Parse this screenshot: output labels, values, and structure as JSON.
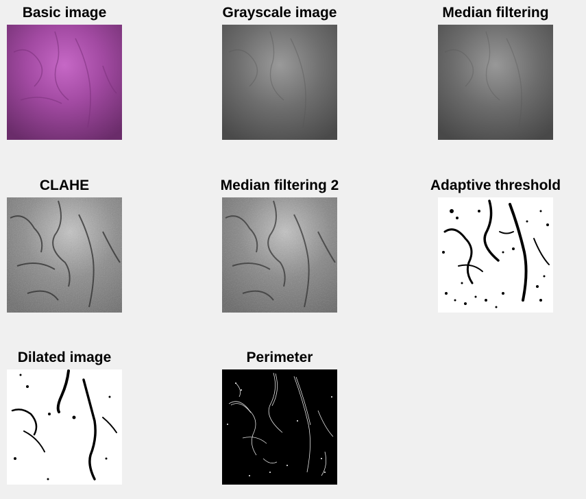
{
  "panels": [
    {
      "id": "basic",
      "title": "Basic image",
      "style": "color-purple"
    },
    {
      "id": "gray",
      "title": "Grayscale image",
      "style": "gray-smooth"
    },
    {
      "id": "median",
      "title": "Median filtering",
      "style": "gray-smooth"
    },
    {
      "id": "clahe",
      "title": "CLAHE",
      "style": "gray-texture"
    },
    {
      "id": "median2",
      "title": "Median filtering 2",
      "style": "gray-texture"
    },
    {
      "id": "adaptive",
      "title": "Adaptive threshold",
      "style": "binary-cracks"
    },
    {
      "id": "dilated",
      "title": "Dilated image",
      "style": "binary-dilated"
    },
    {
      "id": "perimeter",
      "title": "Perimeter",
      "style": "perimeter"
    }
  ],
  "colors": {
    "background": "#f0f0f0",
    "purple_light": "#c060c0",
    "purple_dark": "#6a2a6a"
  }
}
